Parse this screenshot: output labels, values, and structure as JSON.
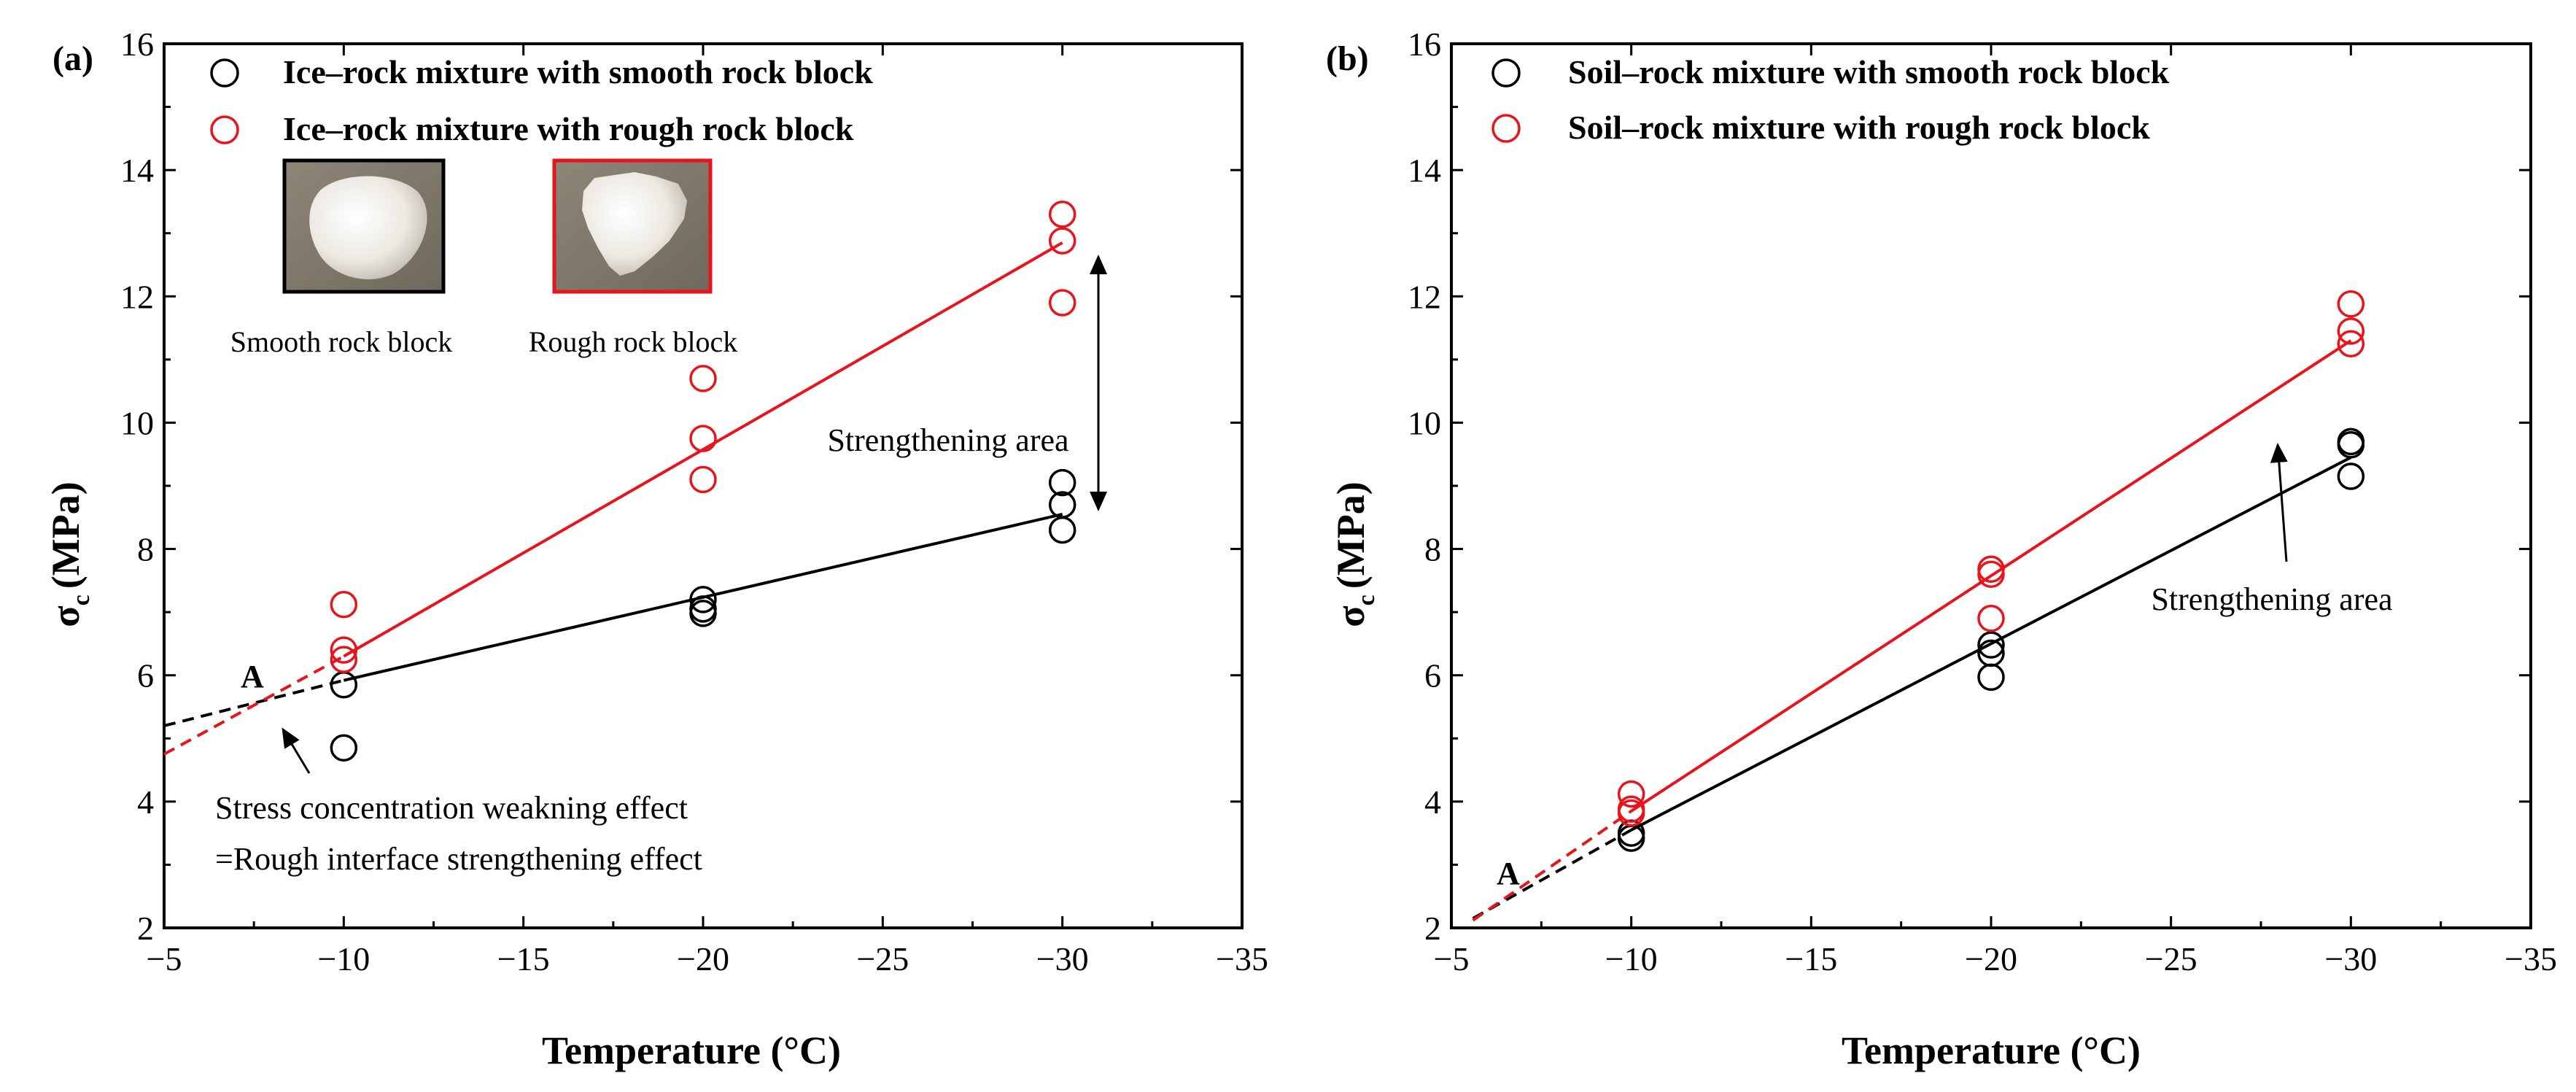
{
  "chart_data": [
    {
      "panel_label": "(a)",
      "type": "scatter",
      "title": "",
      "xlabel": "Temperature (°C)",
      "ylabel_main": "σ",
      "ylabel_sub": "c",
      "ylabel_unit": "(MPa)",
      "xlim": [
        -5,
        -35
      ],
      "ylim": [
        2,
        16
      ],
      "x_ticks": [
        -5,
        -10,
        -15,
        -20,
        -25,
        -30,
        -35
      ],
      "x_tick_labels": [
        "−5",
        "−10",
        "−15",
        "−20",
        "−25",
        "−30",
        "−35"
      ],
      "y_ticks": [
        2,
        4,
        6,
        8,
        10,
        12,
        14,
        16
      ],
      "y_tick_labels": [
        "2",
        "4",
        "6",
        "8",
        "10",
        "12",
        "14",
        "16"
      ],
      "grid": false,
      "series": [
        {
          "name": "Ice–rock mixture with smooth rock block",
          "color": "#000000",
          "points": [
            [
              -10,
              5.85
            ],
            [
              -10,
              4.85
            ],
            [
              -20,
              7.2
            ],
            [
              -20,
              7.05
            ],
            [
              -20,
              6.98
            ],
            [
              -30,
              9.05
            ],
            [
              -30,
              8.7
            ],
            [
              -30,
              8.3
            ]
          ],
          "fit": {
            "x0": -10,
            "y0": 5.92,
            "x1": -30,
            "y1": 8.55
          },
          "ext": {
            "x0": -5,
            "y0": 5.2,
            "x1": -10,
            "y1": 5.92
          }
        },
        {
          "name": "Ice–rock mixture with rough rock block",
          "color": "#e8141c",
          "points": [
            [
              -10,
              7.12
            ],
            [
              -10,
              6.4
            ],
            [
              -10,
              6.25
            ],
            [
              -20,
              10.7
            ],
            [
              -20,
              9.75
            ],
            [
              -20,
              9.1
            ],
            [
              -30,
              13.3
            ],
            [
              -30,
              12.88
            ],
            [
              -30,
              11.9
            ]
          ],
          "fit": {
            "x0": -10,
            "y0": 6.3,
            "x1": -30,
            "y1": 12.85
          },
          "ext": {
            "x0": -5,
            "y0": 4.75,
            "x1": -10,
            "y1": 6.3
          }
        }
      ],
      "annotations": {
        "point_label": "A",
        "weakening_line1": "Stress concentration weakning effect",
        "weakening_line2": "=Rough interface strengthening effect",
        "strengthening": "Strengthening area",
        "smooth_caption": "Smooth rock block",
        "rough_caption": "Rough rock block"
      }
    },
    {
      "panel_label": "(b)",
      "type": "scatter",
      "title": "",
      "xlabel": "Temperature (°C)",
      "ylabel_main": "σ",
      "ylabel_sub": "c",
      "ylabel_unit": "(MPa)",
      "xlim": [
        -5,
        -35
      ],
      "ylim": [
        2,
        16
      ],
      "x_ticks": [
        -5,
        -10,
        -15,
        -20,
        -25,
        -30,
        -35
      ],
      "x_tick_labels": [
        "−5",
        "−10",
        "−15",
        "−20",
        "−25",
        "−30",
        "−35"
      ],
      "y_ticks": [
        2,
        4,
        6,
        8,
        10,
        12,
        14,
        16
      ],
      "y_tick_labels": [
        "2",
        "4",
        "6",
        "8",
        "10",
        "12",
        "14",
        "16"
      ],
      "grid": false,
      "series": [
        {
          "name": "Soil–rock mixture with smooth rock block",
          "color": "#000000",
          "points": [
            [
              -10,
              3.5
            ],
            [
              -10,
              3.42
            ],
            [
              -20,
              6.48
            ],
            [
              -20,
              6.35
            ],
            [
              -20,
              5.97
            ],
            [
              -30,
              9.7
            ],
            [
              -30,
              9.65
            ],
            [
              -30,
              9.15
            ]
          ],
          "fit": {
            "x0": -10,
            "y0": 3.55,
            "x1": -30,
            "y1": 9.45
          },
          "ext": {
            "x0": -5.6,
            "y0": 2.15,
            "x1": -10,
            "y1": 3.55
          }
        },
        {
          "name": "Soil–rock mixture with rough rock block",
          "color": "#e8141c",
          "points": [
            [
              -10,
              4.12
            ],
            [
              -10,
              3.88
            ],
            [
              -10,
              3.82
            ],
            [
              -20,
              7.68
            ],
            [
              -20,
              7.6
            ],
            [
              -20,
              6.9
            ],
            [
              -30,
              11.88
            ],
            [
              -30,
              11.45
            ],
            [
              -30,
              11.25
            ]
          ],
          "fit": {
            "x0": -10,
            "y0": 3.85,
            "x1": -30,
            "y1": 11.3
          },
          "ext": {
            "x0": -5.6,
            "y0": 2.12,
            "x1": -10,
            "y1": 3.85
          }
        }
      ],
      "annotations": {
        "point_label": "A",
        "strengthening": "Strengthening area"
      }
    }
  ]
}
